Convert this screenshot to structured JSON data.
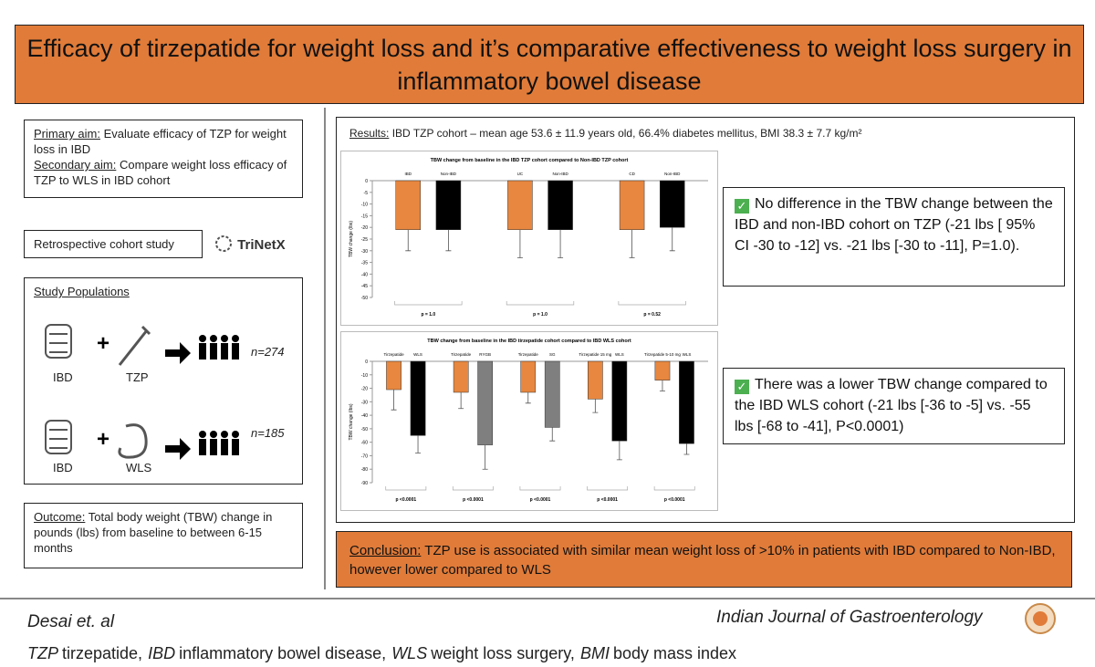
{
  "header": {
    "title": "Efficacy of tirzepatide for weight loss and it’s comparative effectiveness to weight loss surgery in inflammatory bowel disease"
  },
  "aims": {
    "primary_label": "Primary aim:",
    "primary_text": "Evaluate efficacy of TZP for weight loss in IBD",
    "secondary_label": "Secondary aim:",
    "secondary_text": "Compare weight loss efficacy of TZP to WLS in IBD cohort"
  },
  "design": {
    "text": "Retrospective cohort study",
    "logo": "TriNetX"
  },
  "populations": {
    "title": "Study Populations",
    "rows": [
      {
        "left": "IBD",
        "right": "TZP",
        "n": "n=274"
      },
      {
        "left": "IBD",
        "right": "WLS",
        "n": "n=185"
      }
    ]
  },
  "outcome": {
    "label": "Outcome:",
    "text": "Total body weight (TBW) change in pounds (lbs) from baseline to between 6-15 months"
  },
  "results": {
    "label": "Results:",
    "text": "IBD TZP cohort – mean age 53.6 ± 11.9 years old, 66.4% diabetes mellitus, BMI 38.3 ± 7.7 kg/m²"
  },
  "findings": [
    "No difference in the TBW change between the IBD and non-IBD cohort on TZP (-21 lbs [ 95% CI -30 to -12] vs. -21 lbs [-30 to -11], P=1.0).",
    "There was a lower TBW change compared to the IBD WLS cohort (-21 lbs [-36 to -5] vs. -55 lbs [-68 to -41], P<0.0001)"
  ],
  "conclusion": {
    "label": "Conclusion:",
    "text": "TZP use is associated with similar mean weight loss of >10% in patients with IBD compared to Non-IBD, however lower compared to WLS"
  },
  "footer": {
    "authors": "Desai et. al",
    "journal": "Indian Journal of Gastroenterology",
    "abbreviations": [
      {
        "abbr": "TZP",
        "text": "tirzepatide,"
      },
      {
        "abbr": "IBD",
        "text": "inflammatory bowel disease,"
      },
      {
        "abbr": "WLS",
        "text": "weight loss surgery,"
      },
      {
        "abbr": "BMI",
        "text": "body mass index"
      }
    ]
  },
  "chart_data": [
    {
      "type": "bar",
      "title": "TBW change from baseline in the IBD TZP cohort compared to Non-IBD TZP cohort",
      "y_label": "TBW change (lbs)",
      "categories": [
        "IBD",
        "Non-IBD",
        "UC",
        "Non-IBD",
        "CD",
        "Non-IBD"
      ],
      "values": [
        -21,
        -21,
        -21,
        -21,
        -21,
        -20
      ],
      "errors": [
        9,
        9,
        12,
        12,
        12,
        10
      ],
      "colors": [
        "#e8873f",
        "#000000",
        "#e8873f",
        "#000000",
        "#e8873f",
        "#000000"
      ],
      "annotations": [
        "p = 1.0",
        "p = 1.0",
        "p = 0.52"
      ],
      "ylim": [
        -50,
        0
      ],
      "yticks": [
        0,
        -5,
        -10,
        -15,
        -20,
        -25,
        -30,
        -35,
        -40,
        -45,
        -50
      ]
    },
    {
      "type": "bar",
      "title": "TBW change from baseline in the IBD tirzepatide cohort compared to IBD WLS cohort",
      "y_label": "TBW change (lbs)",
      "categories": [
        "Tirzepatide",
        "WLS",
        "Tirzepatide",
        "RYGB",
        "Tirzepatide",
        "SG",
        "Tirzepatide 15 mg",
        "WLS",
        "Tirzepatide 5-10 mg",
        "WLS"
      ],
      "values": [
        -21,
        -55,
        -23,
        -62,
        -23,
        -49,
        -28,
        -59,
        -14,
        -61
      ],
      "errors": [
        15,
        13,
        12,
        18,
        8,
        10,
        10,
        14,
        8,
        8
      ],
      "colors": [
        "#e8873f",
        "#000000",
        "#e8873f",
        "#7f7f7f",
        "#e8873f",
        "#7f7f7f",
        "#e8873f",
        "#000000",
        "#e8873f",
        "#000000"
      ],
      "annotations": [
        "p <0.0001",
        "p <0.0001",
        "p <0.0001",
        "p <0.0001",
        "p <0.0001"
      ],
      "ylim": [
        -90,
        0
      ],
      "yticks": [
        0,
        -10,
        -20,
        -30,
        -40,
        -50,
        -60,
        -70,
        -80,
        -90
      ]
    }
  ]
}
